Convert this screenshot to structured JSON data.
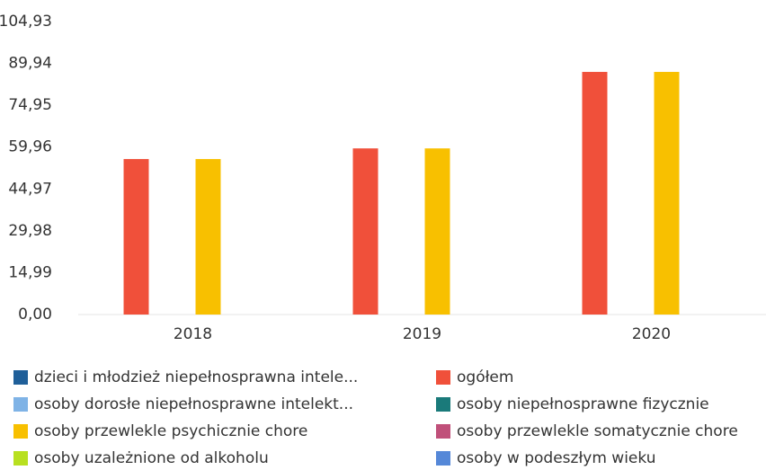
{
  "chart_data": {
    "type": "bar",
    "categories": [
      "2018",
      "2019",
      "2020"
    ],
    "series": [
      {
        "name": "dzieci i młodzież niepełnosprawna intele...",
        "color": "#1f5f99",
        "values": [
          null,
          null,
          null
        ]
      },
      {
        "name": "ogółem",
        "color": "#f0503a",
        "values": [
          55.7,
          59.5,
          86.9
        ]
      },
      {
        "name": "osoby dorosłe niepełnosprawne intelekt...",
        "color": "#7fb3e6",
        "values": [
          null,
          null,
          null
        ]
      },
      {
        "name": "osoby niepełnosprawne fizycznie",
        "color": "#1a7a7a",
        "values": [
          null,
          null,
          null
        ]
      },
      {
        "name": "osoby przewlekle psychicznie chore",
        "color": "#f8c000",
        "values": [
          55.7,
          59.5,
          86.9
        ]
      },
      {
        "name": "osoby przewlekle somatycznie chore",
        "color": "#c0507a",
        "values": [
          null,
          null,
          null
        ]
      },
      {
        "name": "osoby uzależnione od alkoholu",
        "color": "#b8e020",
        "values": [
          null,
          null,
          null
        ]
      },
      {
        "name": "osoby w podeszłym wieku",
        "color": "#5588d8",
        "values": [
          null,
          null,
          null
        ]
      }
    ],
    "ylim": [
      0,
      104.93
    ],
    "yticks": [
      {
        "value": 0,
        "label": "0,00"
      },
      {
        "value": 14.99,
        "label": "14,99"
      },
      {
        "value": 29.98,
        "label": "29,98"
      },
      {
        "value": 44.97,
        "label": "44,97"
      },
      {
        "value": 59.96,
        "label": "59,96"
      },
      {
        "value": 74.95,
        "label": "74,95"
      },
      {
        "value": 89.94,
        "label": "89,94"
      },
      {
        "value": 104.93,
        "label": "104,93"
      }
    ],
    "grid": false
  }
}
